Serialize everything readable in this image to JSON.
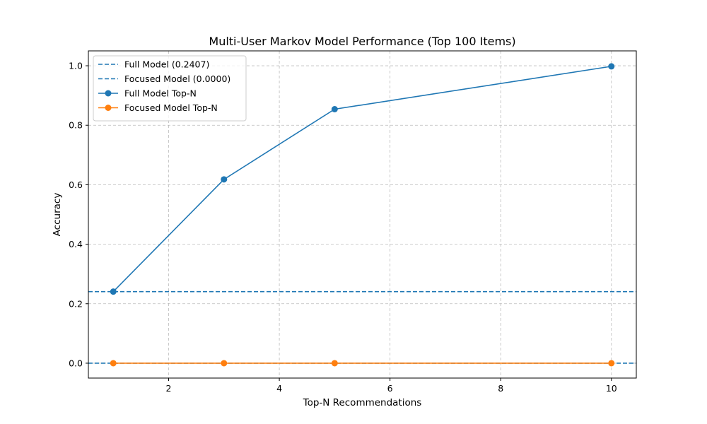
{
  "chart_data": {
    "type": "line",
    "title": "Multi-User Markov Model Performance (Top 100 Items)",
    "xlabel": "Top-N Recommendations",
    "ylabel": "Accuracy",
    "xlim": [
      0.55,
      10.45
    ],
    "ylim": [
      -0.05,
      1.05
    ],
    "xticks": [
      2,
      4,
      6,
      8,
      10
    ],
    "yticks": [
      0.0,
      0.2,
      0.4,
      0.6,
      0.8,
      1.0
    ],
    "xtick_labels": [
      "2",
      "4",
      "6",
      "8",
      "10"
    ],
    "ytick_labels": [
      "0.0",
      "0.2",
      "0.4",
      "0.6",
      "0.8",
      "1.0"
    ],
    "grid": true,
    "legend_position": "top-left",
    "series": [
      {
        "name": "Full Model Top-N",
        "color": "#1f77b4",
        "marker": "circle",
        "x": [
          1,
          3,
          5,
          10
        ],
        "values": [
          0.2407,
          0.618,
          0.854,
          0.998
        ]
      },
      {
        "name": "Focused Model Top-N",
        "color": "#ff7f0e",
        "marker": "circle",
        "x": [
          1,
          3,
          5,
          10
        ],
        "values": [
          0.0,
          0.0,
          0.0,
          0.0
        ]
      }
    ],
    "reference_lines": [
      {
        "name": "Full Model (0.2407)",
        "y": 0.2407,
        "color": "#1f77b4",
        "style": "dashed"
      },
      {
        "name": "Focused Model (0.0000)",
        "y": 0.0,
        "color": "#1f77b4",
        "style": "dashed"
      }
    ]
  }
}
